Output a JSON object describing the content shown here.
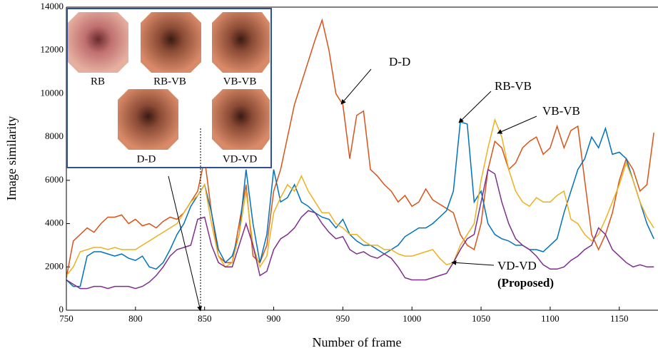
{
  "chart_data": {
    "type": "line",
    "xlabel": "Number of frame",
    "ylabel": "Image similarity",
    "xlim": [
      750,
      1178
    ],
    "ylim": [
      0,
      14000
    ],
    "xticks": [
      750,
      800,
      850,
      900,
      950,
      1000,
      1050,
      1100,
      1150
    ],
    "yticks": [
      0,
      2000,
      4000,
      6000,
      8000,
      10000,
      12000,
      14000
    ],
    "x": [
      750,
      755,
      760,
      765,
      770,
      775,
      780,
      785,
      790,
      795,
      800,
      805,
      810,
      815,
      820,
      825,
      830,
      835,
      840,
      845,
      850,
      855,
      860,
      865,
      870,
      875,
      880,
      885,
      890,
      895,
      900,
      905,
      910,
      915,
      920,
      925,
      930,
      935,
      940,
      945,
      950,
      955,
      960,
      965,
      970,
      975,
      980,
      985,
      990,
      995,
      1000,
      1005,
      1010,
      1015,
      1020,
      1025,
      1030,
      1035,
      1040,
      1045,
      1050,
      1055,
      1060,
      1065,
      1070,
      1075,
      1080,
      1085,
      1090,
      1095,
      1100,
      1105,
      1110,
      1115,
      1120,
      1125,
      1130,
      1135,
      1140,
      1145,
      1150,
      1155,
      1160,
      1165,
      1170,
      1175
    ],
    "series": [
      {
        "name": "D-D",
        "color": "#d95319",
        "values": [
          1500,
          3200,
          3500,
          3800,
          3600,
          4000,
          4300,
          4300,
          4400,
          4000,
          4200,
          3900,
          4000,
          3800,
          4100,
          4300,
          4200,
          4500,
          5000,
          5500,
          7000,
          4500,
          2500,
          2200,
          2200,
          4000,
          5800,
          2500,
          2200,
          3000,
          5500,
          6500,
          8000,
          9500,
          10500,
          11500,
          12500,
          13400,
          12000,
          10000,
          9500,
          7000,
          9000,
          9200,
          6500,
          6200,
          5800,
          5500,
          5000,
          5300,
          4800,
          5000,
          5600,
          5100,
          4900,
          4700,
          4500,
          3500,
          3000,
          2800,
          4000,
          6500,
          7800,
          7500,
          6500,
          6800,
          7500,
          7800,
          8000,
          7200,
          7500,
          8500,
          7500,
          8300,
          8500,
          6000,
          3500,
          2800,
          3500,
          4500,
          6000,
          7000,
          6500,
          5500,
          5800,
          8200
        ]
      },
      {
        "name": "RB-VB",
        "color": "#0072bd",
        "values": [
          1400,
          1100,
          1100,
          2500,
          2700,
          2700,
          2600,
          2500,
          2600,
          2400,
          2300,
          2500,
          2000,
          1900,
          2200,
          2800,
          3500,
          4000,
          4800,
          5300,
          5800,
          4500,
          2800,
          2200,
          2500,
          3500,
          6500,
          4000,
          2200,
          3500,
          6500,
          5000,
          5200,
          5800,
          5000,
          4800,
          4500,
          4300,
          4200,
          3800,
          4200,
          3500,
          3200,
          3000,
          3000,
          2800,
          2600,
          2800,
          3000,
          3400,
          3600,
          3800,
          3800,
          4000,
          4300,
          4600,
          5500,
          8700,
          8600,
          5000,
          5500,
          4000,
          3500,
          3300,
          3200,
          3000,
          3000,
          2800,
          2800,
          2700,
          3000,
          3300,
          4500,
          5500,
          6500,
          7000,
          8000,
          7500,
          8400,
          7200,
          7300,
          7000,
          6000,
          5000,
          4000,
          3300
        ]
      },
      {
        "name": "VB-VB",
        "color": "#edb120",
        "values": [
          1600,
          2000,
          2700,
          2800,
          2900,
          2900,
          2800,
          2900,
          2800,
          2800,
          2800,
          3000,
          3200,
          3400,
          3600,
          3800,
          4000,
          4500,
          5000,
          5300,
          5800,
          4000,
          2500,
          2000,
          2200,
          3500,
          5500,
          3000,
          2000,
          2500,
          4500,
          5200,
          5800,
          5500,
          6200,
          5500,
          5000,
          4500,
          4500,
          4000,
          3800,
          3500,
          3500,
          3200,
          3000,
          3000,
          2800,
          2800,
          2600,
          2500,
          2500,
          2600,
          2700,
          2800,
          2400,
          2100,
          2200,
          3000,
          3500,
          4000,
          6000,
          7500,
          8800,
          8000,
          6500,
          5500,
          5000,
          4800,
          5200,
          5000,
          5000,
          5300,
          5500,
          4200,
          4000,
          3500,
          3200,
          3500,
          4200,
          5000,
          5800,
          6800,
          6000,
          5000,
          4300,
          3800
        ]
      },
      {
        "name": "VD-VD",
        "color": "#7e2f8e",
        "values": [
          1400,
          1200,
          1000,
          1000,
          1100,
          1100,
          1000,
          1100,
          1100,
          1100,
          1000,
          1100,
          1300,
          1600,
          2000,
          2500,
          2800,
          2900,
          3000,
          4200,
          4300,
          3000,
          2200,
          2000,
          2000,
          3000,
          4000,
          3000,
          1600,
          1800,
          2800,
          3300,
          3500,
          3800,
          4300,
          4600,
          4500,
          4000,
          3600,
          3300,
          3400,
          2800,
          2600,
          2700,
          2500,
          2400,
          2600,
          2400,
          2000,
          1500,
          1400,
          1400,
          1400,
          1500,
          1600,
          1700,
          2200,
          2800,
          3300,
          3500,
          5000,
          6500,
          6300,
          5000,
          4000,
          3300,
          3000,
          2800,
          2500,
          2100,
          1900,
          1900,
          2000,
          2300,
          2500,
          2800,
          3000,
          3800,
          3500,
          2800,
          2500,
          2200,
          2000,
          2100,
          2000,
          2000
        ]
      }
    ],
    "annotations": [
      "D-D",
      "RB-VB",
      "VB-VB",
      "VD-VD",
      "(Proposed)"
    ],
    "inset_labels": [
      "RB",
      "RB-VB",
      "VB-VB",
      "D-D",
      "VD-VD"
    ]
  }
}
